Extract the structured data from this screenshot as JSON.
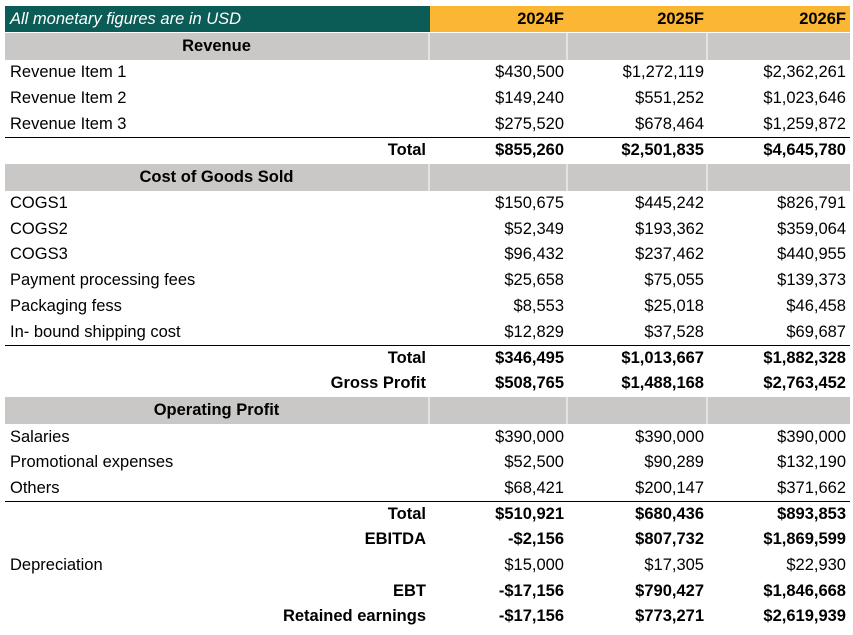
{
  "header": {
    "note": "All monetary figures are in USD",
    "years": [
      "2024F",
      "2025F",
      "2026F"
    ]
  },
  "colors": {
    "header_note_bg": "#0b5c57",
    "header_year_bg": "#fbb733",
    "section_bg": "#c9c8c7"
  },
  "rows": [
    {
      "type": "section",
      "label": "Revenue"
    },
    {
      "type": "item",
      "label": "Revenue Item 1",
      "values": [
        "$430,500",
        "$1,272,119",
        "$2,362,261"
      ]
    },
    {
      "type": "item",
      "label": "Revenue Item 2",
      "values": [
        "$149,240",
        "$551,252",
        "$1,023,646"
      ]
    },
    {
      "type": "item",
      "label": "Revenue Item 3",
      "values": [
        "$275,520",
        "$678,464",
        "$1,259,872"
      ]
    },
    {
      "type": "total",
      "line": true,
      "label": "Total",
      "values": [
        "$855,260",
        "$2,501,835",
        "$4,645,780"
      ]
    },
    {
      "type": "section",
      "label": "Cost of Goods Sold"
    },
    {
      "type": "item",
      "label": "COGS1",
      "values": [
        "$150,675",
        "$445,242",
        "$826,791"
      ]
    },
    {
      "type": "item",
      "label": "COGS2",
      "values": [
        "$52,349",
        "$193,362",
        "$359,064"
      ]
    },
    {
      "type": "item",
      "label": "COGS3",
      "values": [
        "$96,432",
        "$237,462",
        "$440,955"
      ]
    },
    {
      "type": "item",
      "label": "Payment processing fees",
      "values": [
        "$25,658",
        "$75,055",
        "$139,373"
      ]
    },
    {
      "type": "item",
      "label": "Packaging fess",
      "values": [
        "$8,553",
        "$25,018",
        "$46,458"
      ]
    },
    {
      "type": "item",
      "label": "In- bound shipping cost",
      "values": [
        "$12,829",
        "$37,528",
        "$69,687"
      ]
    },
    {
      "type": "total",
      "line": true,
      "label": "Total",
      "values": [
        "$346,495",
        "$1,013,667",
        "$1,882,328"
      ]
    },
    {
      "type": "total",
      "label": "Gross Profit",
      "values": [
        "$508,765",
        "$1,488,168",
        "$2,763,452"
      ]
    },
    {
      "type": "section",
      "label": "Operating Profit"
    },
    {
      "type": "item",
      "label": "Salaries",
      "values": [
        "$390,000",
        "$390,000",
        "$390,000"
      ]
    },
    {
      "type": "item",
      "label": "Promotional expenses",
      "values": [
        "$52,500",
        "$90,289",
        "$132,190"
      ]
    },
    {
      "type": "item",
      "label": "Others",
      "values": [
        "$68,421",
        "$200,147",
        "$371,662"
      ]
    },
    {
      "type": "total",
      "line": true,
      "label": "Total",
      "values": [
        "$510,921",
        "$680,436",
        "$893,853"
      ]
    },
    {
      "type": "total",
      "label": "EBITDA",
      "values": [
        "-$2,156",
        "$807,732",
        "$1,869,599"
      ]
    },
    {
      "type": "item",
      "label": "Depreciation",
      "values": [
        "$15,000",
        "$17,305",
        "$22,930"
      ]
    },
    {
      "type": "total",
      "label": "EBT",
      "values": [
        "-$17,156",
        "$790,427",
        "$1,846,668"
      ]
    },
    {
      "type": "total",
      "label": "Retained earnings",
      "values": [
        "-$17,156",
        "$773,271",
        "$2,619,939"
      ]
    }
  ]
}
